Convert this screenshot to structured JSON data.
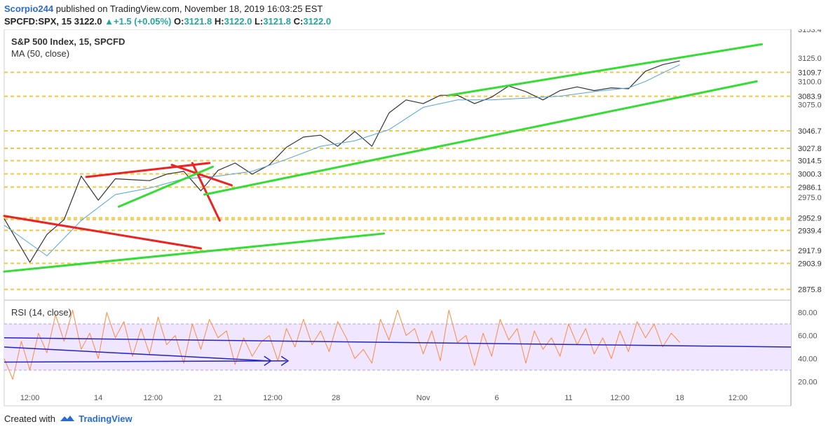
{
  "header": {
    "username": "Scorpio244",
    "published": "published on TradingView.com, November 18, 2019 16:03:25 EST",
    "symbol": "SPCFD:SPX, 15",
    "last": "3122.0",
    "change": "+1.5 (+0.05%)",
    "o_label": "O:",
    "o_value": "3121.8",
    "h_label": "H:",
    "h_value": "3122.0",
    "l_label": "L:",
    "l_value": "3121.8",
    "c_label": "C:",
    "c_value": "3122.0"
  },
  "footer": {
    "created_with": "Created with",
    "brand": "TradingView"
  },
  "colors": {
    "price": "#333333",
    "ma": "#4fa3e0",
    "rsi": "#ff8a3d",
    "rsi_band": "#f0e6ff",
    "level": "#f2c744",
    "trend_up": "#33dd33",
    "trend_down": "#ee2222",
    "rsi_trend": "#2222cc",
    "axis_text": "#333333"
  },
  "chart_data": [
    {
      "type": "line",
      "title": "S&P 500 Index, 15, SPCFD",
      "indicator": "MA (50, close)",
      "ylim": [
        2868,
        3156
      ],
      "y_ticks": [
        2975.0,
        3075.0,
        3100.0,
        3125.0
      ],
      "partial_top_tick": "3153.4",
      "levels": [
        2875.8,
        2903.9,
        2917.9,
        2939.4,
        2951.1,
        2952.9,
        2986.1,
        3000.3,
        3014.5,
        3027.8,
        3046.7,
        3083.9,
        3109.7
      ],
      "x_tick_labels": [
        "12:00",
        "14",
        "12:00",
        "21",
        "12:00",
        "28",
        "Nov",
        "6",
        "11",
        "12:00",
        "18",
        "12:00"
      ],
      "series": [
        {
          "kind": "price",
          "x": [
            0,
            1.5,
            2.5,
            3.5,
            4.5,
            5.5,
            6.5,
            7.5,
            8.5,
            9.5,
            10.5,
            11.5,
            12.5,
            13.5,
            14.5,
            15.5,
            16.5,
            17.5,
            18.5,
            19.5,
            20.5,
            21.5,
            22.5,
            23.5,
            24.5,
            25.5,
            26.5,
            27.5,
            28.5,
            29.5,
            30.5,
            31.5,
            32.5,
            33.5,
            34.5,
            35.5,
            36.5,
            37.5,
            38.5,
            39.5
          ],
          "values": [
            2952,
            2905,
            2935,
            2951,
            2998,
            2972,
            2995,
            2994,
            2993,
            3000,
            3003,
            2982,
            3004,
            3012,
            3000,
            3010,
            3029,
            3040,
            3042,
            3030,
            3046,
            3030,
            3066,
            3080,
            3076,
            3085,
            3085,
            3076,
            3083,
            3095,
            3089,
            3080,
            3090,
            3094,
            3090,
            3093,
            3092,
            3111,
            3118,
            3122
          ]
        },
        {
          "kind": "ma",
          "x": [
            0,
            2.5,
            4.5,
            6.5,
            8.5,
            10.5,
            12.5,
            14.5,
            16.5,
            18.5,
            20.5,
            22.5,
            24.5,
            26.5,
            28.5,
            30.5,
            32.5,
            34.5,
            36.5,
            37.5,
            38.5,
            39.5
          ],
          "values": [
            2945,
            2912,
            2950,
            2978,
            2985,
            2995,
            2998,
            3003,
            3016,
            3030,
            3036,
            3048,
            3072,
            3080,
            3080,
            3082,
            3084,
            3089,
            3093,
            3100,
            3109,
            3118
          ]
        }
      ]
    },
    {
      "type": "line",
      "title": "RSI (14, close)",
      "ylim": [
        10,
        90
      ],
      "y_ticks": [
        20.0,
        40.0,
        60.0,
        80.0
      ],
      "band": [
        30,
        70
      ],
      "series": [
        {
          "kind": "rsi",
          "x": [
            0,
            0.5,
            1,
            1.5,
            2,
            2.5,
            3,
            3.5,
            4,
            4.5,
            5,
            5.5,
            6,
            6.5,
            7,
            7.5,
            8,
            8.5,
            9,
            9.5,
            10,
            10.5,
            11,
            11.5,
            12,
            12.5,
            13,
            13.5,
            14,
            14.5,
            15,
            15.5,
            16,
            16.5,
            17,
            17.5,
            18,
            18.5,
            19,
            19.5,
            20,
            20.5,
            21,
            21.5,
            22,
            22.5,
            23,
            23.5,
            24,
            24.5,
            25,
            25.5,
            26,
            26.5,
            27,
            27.5,
            28,
            28.5,
            29,
            29.5,
            30,
            30.5,
            31,
            31.5,
            32,
            32.5,
            33,
            33.5,
            34,
            34.5,
            35,
            35.5,
            36,
            36.5,
            37,
            37.5,
            38,
            38.5,
            39,
            39.5
          ],
          "values": [
            40,
            22,
            55,
            30,
            62,
            45,
            78,
            55,
            82,
            48,
            62,
            40,
            80,
            58,
            72,
            42,
            66,
            44,
            76,
            52,
            60,
            36,
            70,
            48,
            74,
            58,
            64,
            35,
            58,
            42,
            54,
            60,
            38,
            66,
            50,
            74,
            52,
            64,
            46,
            72,
            58,
            40,
            48,
            36,
            74,
            56,
            82,
            60,
            66,
            44,
            64,
            38,
            82,
            54,
            60,
            34,
            62,
            42,
            74,
            56,
            66,
            36,
            64,
            48,
            58,
            42,
            70,
            52,
            66,
            44,
            58,
            40,
            64,
            46,
            72,
            58,
            70,
            50,
            62,
            54
          ]
        }
      ]
    }
  ]
}
